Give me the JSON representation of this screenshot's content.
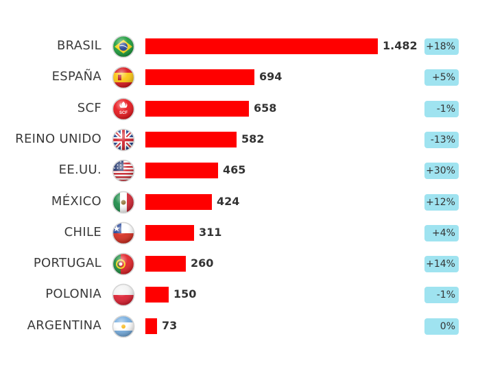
{
  "chart_data": {
    "type": "bar",
    "orientation": "horizontal",
    "categories": [
      "BRASIL",
      "ESPAÑA",
      "SCF",
      "REINO UNIDO",
      "EE.UU.",
      "MÉXICO",
      "CHILE",
      "PORTUGAL",
      "POLONIA",
      "ARGENTINA"
    ],
    "values": [
      1482,
      694,
      658,
      582,
      465,
      424,
      311,
      260,
      150,
      73
    ],
    "value_labels": [
      "1.482",
      "694",
      "658",
      "582",
      "465",
      "424",
      "311",
      "260",
      "150",
      "73"
    ],
    "changes": [
      "+18%",
      "+5%",
      "-1%",
      "-13%",
      "+30%",
      "+12%",
      "+4%",
      "+14%",
      "-1%",
      "0%"
    ],
    "flags": [
      "brazil-flag-icon",
      "spain-flag-icon",
      "scf-logo-icon",
      "uk-flag-icon",
      "usa-flag-icon",
      "mexico-flag-icon",
      "chile-flag-icon",
      "portugal-flag-icon",
      "poland-flag-icon",
      "argentina-flag-icon"
    ],
    "scf_logo_text": "SCF",
    "title": "",
    "xlabel": "",
    "ylabel": "",
    "xlim": [
      0,
      1482
    ],
    "grid": false,
    "legend": "none",
    "bar_color": "#ff0000",
    "badge_color": "#9fe3f0"
  }
}
